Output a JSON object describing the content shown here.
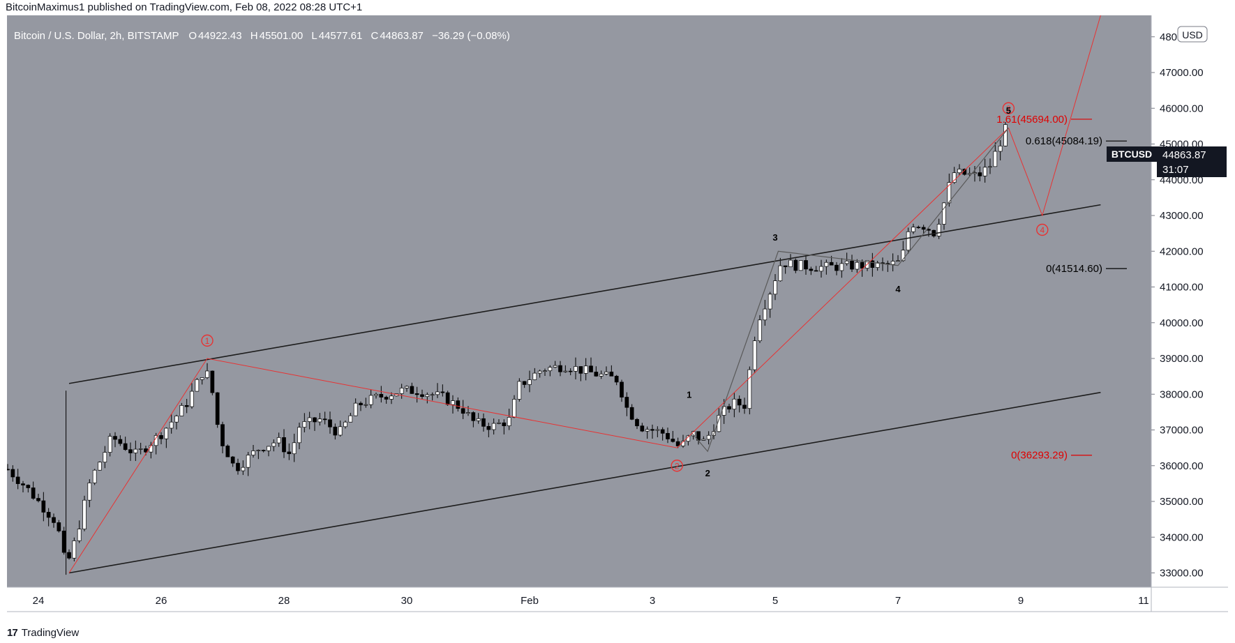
{
  "header": {
    "published": "BitcoinMaximus1 published on TradingView.com, Feb 08, 2022 08:28 UTC+1"
  },
  "legend": {
    "symbol": "Bitcoin / U.S. Dollar, 2h, BITSTAMP",
    "o_label": "O",
    "o": "44922.43",
    "h_label": "H",
    "h": "45501.00",
    "l_label": "L",
    "l": "44577.61",
    "c_label": "C",
    "c": "44863.87",
    "change": "−36.29 (−0.08%)"
  },
  "currency": "USD",
  "ticker": {
    "name": "BTCUSD",
    "price": "44863.87",
    "countdown": "31:07"
  },
  "footer": {
    "brand": "TradingView"
  },
  "colors": {
    "plot_bg": "#9598a1",
    "candle_up": "#ffffff",
    "candle_down": "#000000",
    "channel": "#1c1c1c",
    "wave_red": "#e83232",
    "wave_grey": "#595959",
    "fib_red": "#e00000"
  },
  "chart_data": {
    "type": "candlestick",
    "y_range": [
      32600,
      48600
    ],
    "y_ticks": [
      33000,
      34000,
      35000,
      36000,
      37000,
      38000,
      39000,
      40000,
      41000,
      42000,
      43000,
      44000,
      45000,
      46000,
      47000,
      48000
    ],
    "y_tick_labels": [
      "33000.00",
      "34000.00",
      "35000.00",
      "36000.00",
      "37000.00",
      "38000.00",
      "39000.00",
      "40000.00",
      "41000.00",
      "42000.00",
      "43000.00",
      "44000.00",
      "45000.00",
      "46000.00",
      "47000.00",
      "48000.00"
    ],
    "x_range_days": [
      -0.5,
      17.3
    ],
    "x_ticks": [
      {
        "day": 0,
        "label": "24"
      },
      {
        "day": 2,
        "label": "26"
      },
      {
        "day": 4,
        "label": "28"
      },
      {
        "day": 6,
        "label": "30"
      },
      {
        "day": 8,
        "label": "Feb"
      },
      {
        "day": 10,
        "label": "3"
      },
      {
        "day": 12,
        "label": "5"
      },
      {
        "day": 14,
        "label": "7"
      },
      {
        "day": 16,
        "label": "9"
      },
      {
        "day": 18,
        "label": "11"
      }
    ],
    "candles_anchor_path": [
      [
        -0.5,
        35900
      ],
      [
        -0.2,
        35400
      ],
      [
        0.3,
        34400
      ],
      [
        0.45,
        33150
      ],
      [
        0.6,
        33900
      ],
      [
        0.85,
        35600
      ],
      [
        1.2,
        36800
      ],
      [
        1.6,
        36300
      ],
      [
        2.0,
        36900
      ],
      [
        2.4,
        37700
      ],
      [
        2.7,
        38700
      ],
      [
        2.8,
        38400
      ],
      [
        2.95,
        36800
      ],
      [
        3.1,
        36300
      ],
      [
        3.2,
        35900
      ],
      [
        3.6,
        36500
      ],
      [
        3.9,
        36700
      ],
      [
        4.1,
        36300
      ],
      [
        4.25,
        37100
      ],
      [
        4.6,
        37300
      ],
      [
        4.9,
        36900
      ],
      [
        5.2,
        37700
      ],
      [
        5.5,
        37900
      ],
      [
        5.9,
        38100
      ],
      [
        6.2,
        38100
      ],
      [
        6.6,
        37900
      ],
      [
        6.9,
        37600
      ],
      [
        7.1,
        37200
      ],
      [
        7.4,
        37100
      ],
      [
        7.7,
        37300
      ],
      [
        7.8,
        38200
      ],
      [
        8.2,
        38700
      ],
      [
        8.6,
        38800
      ],
      [
        9.0,
        38600
      ],
      [
        9.45,
        38400
      ],
      [
        9.55,
        37700
      ],
      [
        9.8,
        37100
      ],
      [
        10.2,
        36900
      ],
      [
        10.45,
        36500
      ],
      [
        10.65,
        36900
      ],
      [
        10.85,
        36650
      ],
      [
        11.1,
        37400
      ],
      [
        11.3,
        37750
      ],
      [
        11.5,
        37700
      ],
      [
        11.7,
        40000
      ],
      [
        11.9,
        40800
      ],
      [
        12.1,
        41700
      ],
      [
        12.35,
        41600
      ],
      [
        12.8,
        41550
      ],
      [
        13.3,
        41600
      ],
      [
        13.8,
        41600
      ],
      [
        14.05,
        41700
      ],
      [
        14.2,
        42800
      ],
      [
        14.45,
        42700
      ],
      [
        14.6,
        42500
      ],
      [
        14.9,
        44200
      ],
      [
        15.3,
        44100
      ],
      [
        15.5,
        44400
      ],
      [
        15.75,
        45400
      ],
      [
        15.82,
        44950
      ]
    ],
    "current_price": 44863.87,
    "fib_levels_black": [
      {
        "ratio": "0.618",
        "price": 45084.19,
        "label": "0.618(45084.19)"
      },
      {
        "ratio": "0",
        "price": 41514.6,
        "label": "0(41514.60)"
      }
    ],
    "fib_levels_red": [
      {
        "ratio": "1.61",
        "price": 45694.0,
        "label": "1.61(45694.00)"
      },
      {
        "ratio": "0",
        "price": 36293.29,
        "label": "0(36293.29)"
      }
    ],
    "channel_upper": [
      [
        0.5,
        38300
      ],
      [
        17.3,
        43300
      ]
    ],
    "channel_lower": [
      [
        0.5,
        33000
      ],
      [
        17.3,
        38050
      ]
    ],
    "wave_red_path": [
      [
        0.5,
        33000
      ],
      [
        2.75,
        39000
      ],
      [
        10.4,
        36500
      ],
      [
        15.8,
        45450
      ],
      [
        16.35,
        43000
      ],
      [
        17.3,
        48600
      ]
    ],
    "wave_grey_path": [
      [
        10.65,
        36900
      ],
      [
        10.9,
        36400
      ],
      [
        12.05,
        42000
      ],
      [
        14.0,
        41600
      ],
      [
        15.8,
        45450
      ]
    ],
    "wave_labels_red": [
      {
        "label": "1",
        "day": 2.75,
        "price": 39500
      },
      {
        "label": "2",
        "day": 10.4,
        "price": 36000
      },
      {
        "label": "3",
        "day": 15.8,
        "price": 46000
      },
      {
        "label": "4",
        "day": 16.35,
        "price": 42600
      }
    ],
    "wave_labels_black": [
      {
        "label": "1",
        "day": 10.6,
        "price": 38000
      },
      {
        "label": "2",
        "day": 10.9,
        "price": 35800
      },
      {
        "label": "3",
        "day": 12.0,
        "price": 42400
      },
      {
        "label": "4",
        "day": 14.0,
        "price": 40950
      },
      {
        "label": "5",
        "day": 15.8,
        "price": 45950
      }
    ]
  }
}
